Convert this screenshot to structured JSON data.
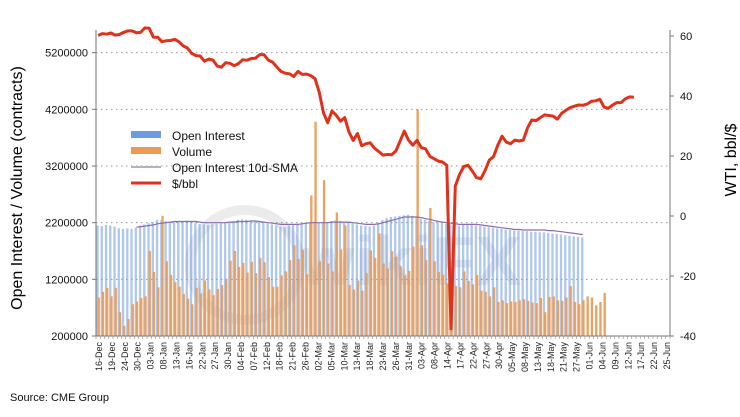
{
  "chart_data": {
    "type": "bar",
    "title": "",
    "xlabel": "",
    "ylabel": "Open Interest / Volume (contracts)",
    "y2label": "WTI, bbl/$",
    "ylim": [
      200000,
      5600000
    ],
    "y2lim": [
      -40,
      62
    ],
    "yticks": [
      "200000",
      "1200000",
      "2200000",
      "3200000",
      "4200000",
      "5200000"
    ],
    "y2ticks": [
      "-40",
      "-20",
      "0",
      "20",
      "40",
      "60"
    ],
    "grid": "horizontal-dotted",
    "legend_position": "center-left",
    "legend": [
      {
        "name": "Open Interest",
        "kind": "bar"
      },
      {
        "name": "Volume",
        "kind": "bar"
      },
      {
        "name": "Open Interest 10d-SMA",
        "kind": "line"
      },
      {
        "name": "$/bbl",
        "kind": "line"
      }
    ],
    "x_tick_labels": [
      "16-Dec",
      "19-Dec",
      "24-Dec",
      "30-Dec",
      "03-Jan",
      "08-Jan",
      "13-Jan",
      "16-Jan",
      "22-Jan",
      "27-Jan",
      "30-Jan",
      "04-Feb",
      "07-Feb",
      "12-Feb",
      "18-Feb",
      "21-Feb",
      "26-Feb",
      "02-Mar",
      "05-Mar",
      "10-Mar",
      "13-Mar",
      "18-Mar",
      "23-Mar",
      "26-Mar",
      "31-Mar",
      "03-Apr",
      "08-Apr",
      "14-Apr",
      "17-Apr",
      "22-Apr",
      "27-Apr",
      "30-Apr",
      "05-May",
      "08-May",
      "13-May",
      "18-May",
      "21-May",
      "27-May",
      "01-Jun",
      "04-Jun",
      "09-Jun",
      "12-Jun",
      "17-Jun",
      "22-Jun",
      "25-Jun"
    ],
    "total_slots": 135,
    "series": [
      {
        "name": "Open Interest",
        "axis": "left",
        "values": [
          2150000,
          2140000,
          2160000,
          2150000,
          2130000,
          2100000,
          2090000,
          2100000,
          2090000,
          2110000,
          2150000,
          2170000,
          2190000,
          2210000,
          2250000,
          2240000,
          2230000,
          2200000,
          2210000,
          2230000,
          2220000,
          2240000,
          2230000,
          2200000,
          2180000,
          2170000,
          2160000,
          2170000,
          2180000,
          2190000,
          2200000,
          2210000,
          2230000,
          2250000,
          2260000,
          2250000,
          2240000,
          2230000,
          2220000,
          2210000,
          2190000,
          2170000,
          2150000,
          2130000,
          2120000,
          2150000,
          2170000,
          2180000,
          2190000,
          2200000,
          2210000,
          2220000,
          2200000,
          2190000,
          2210000,
          2230000,
          2240000,
          2230000,
          2220000,
          2210000,
          2190000,
          2170000,
          2150000,
          2140000,
          2130000,
          2150000,
          2200000,
          2250000,
          2280000,
          2300000,
          2310000,
          2320000,
          2330000,
          2340000,
          2320000,
          2300000,
          2270000,
          2250000,
          2230000,
          2210000,
          2200000,
          2190000,
          2180000,
          2170000,
          2160000,
          2150000,
          2160000,
          2170000,
          2160000,
          2150000,
          2140000,
          2130000,
          2120000,
          2110000,
          2100000,
          2090000,
          2080000,
          2070000,
          2060000,
          2060000,
          2050000,
          2050000,
          2040000,
          2040000,
          2030000,
          2030000,
          2020000,
          2010000,
          2000000,
          1990000,
          1980000,
          1970000,
          1960000,
          1950000,
          1940000
        ],
        "color": "#6f9be0"
      },
      {
        "name": "Volume",
        "axis": "left",
        "values": [
          880000,
          980000,
          1050000,
          900000,
          1050000,
          620000,
          380000,
          500000,
          760000,
          810000,
          870000,
          900000,
          1700000,
          1330000,
          1060000,
          2320000,
          1520000,
          1280000,
          1150000,
          1070000,
          940000,
          860000,
          760000,
          1050000,
          950000,
          1180000,
          1020000,
          920000,
          1030000,
          1100000,
          1210000,
          1530000,
          1700000,
          1420000,
          1490000,
          1320000,
          1510000,
          1310000,
          1580000,
          1500000,
          1240000,
          1070000,
          1070000,
          1270000,
          1340000,
          1540000,
          1800000,
          1560000,
          1720000,
          1290000,
          2680000,
          3980000,
          1520000,
          2950000,
          1480000,
          1340000,
          2380000,
          1730000,
          2150000,
          1100000,
          1020000,
          1180000,
          1000000,
          1310000,
          1710000,
          1580000,
          2010000,
          1480000,
          1390000,
          1700000,
          1600000,
          1430000,
          1270000,
          1350000,
          1780000,
          4200000,
          1800000,
          1540000,
          2460000,
          1520000,
          1330000,
          1280000,
          1130000,
          1420000,
          1080000,
          1060000,
          1340000,
          1170000,
          1110000,
          1280000,
          1000000,
          980000,
          900000,
          1060000,
          800000,
          830000,
          780000,
          810000,
          800000,
          830000,
          850000,
          820000,
          790000,
          780000,
          870000,
          620000,
          890000,
          900000,
          830000,
          820000,
          880000,
          1080000,
          800000,
          760000,
          830000,
          900000,
          880000,
          740000,
          800000,
          960000
        ],
        "color": "#ec9a53"
      },
      {
        "name": "Open Interest 10d-SMA",
        "axis": "left",
        "values": [
          null,
          null,
          null,
          null,
          null,
          null,
          null,
          null,
          null,
          2120000,
          2130000,
          2140000,
          2150000,
          2160000,
          2180000,
          2190000,
          2200000,
          2210000,
          2220000,
          2220000,
          2220000,
          2220000,
          2220000,
          2220000,
          2210000,
          2200000,
          2200000,
          2200000,
          2200000,
          2200000,
          2200000,
          2210000,
          2210000,
          2220000,
          2220000,
          2220000,
          2230000,
          2230000,
          2220000,
          2210000,
          2200000,
          2190000,
          2180000,
          2170000,
          2170000,
          2170000,
          2170000,
          2170000,
          2180000,
          2190000,
          2200000,
          2200000,
          2200000,
          2200000,
          2200000,
          2210000,
          2210000,
          2210000,
          2210000,
          2210000,
          2200000,
          2190000,
          2180000,
          2170000,
          2170000,
          2170000,
          2180000,
          2200000,
          2220000,
          2240000,
          2260000,
          2280000,
          2300000,
          2300000,
          2300000,
          2300000,
          2290000,
          2270000,
          2260000,
          2240000,
          2220000,
          2210000,
          2200000,
          2190000,
          2180000,
          2170000,
          2170000,
          2170000,
          2170000,
          2170000,
          2160000,
          2150000,
          2140000,
          2130000,
          2120000,
          2110000,
          2100000,
          2090000,
          2080000,
          2080000,
          2070000,
          2070000,
          2070000,
          2070000,
          2070000,
          2070000,
          2060000,
          2060000,
          2050000,
          2040000,
          2030000,
          2020000,
          2010000,
          2000000,
          1990000
        ],
        "color": "#8a6db5"
      },
      {
        "name": "$/bbl",
        "axis": "right",
        "values": [
          60.2,
          60.8,
          60.6,
          61.0,
          60.3,
          60.5,
          61.2,
          61.7,
          61.7,
          61.1,
          61.2,
          62.7,
          62.6,
          59.6,
          59.6,
          58.1,
          58.4,
          58.5,
          58.9,
          58.1,
          56.7,
          56.0,
          54.2,
          53.5,
          53.3,
          51.6,
          52.3,
          52.0,
          50.0,
          49.6,
          51.1,
          50.9,
          50.1,
          50.8,
          52.1,
          51.9,
          52.5,
          52.6,
          53.8,
          53.8,
          52.0,
          51.3,
          49.7,
          48.2,
          47.6,
          47.4,
          46.5,
          48.2,
          47.2,
          47.3,
          46.8,
          45.8,
          41.3,
          34.4,
          31.1,
          35.0,
          33.6,
          31.6,
          32.8,
          28.0,
          25.2,
          27.5,
          23.4,
          24.1,
          24.4,
          22.6,
          21.5,
          20.3,
          20.5,
          20.4,
          21.6,
          24.9,
          28.3,
          25.3,
          23.6,
          25.2,
          22.8,
          22.4,
          19.9,
          19.1,
          18.3,
          18.0,
          16.9,
          -37.6,
          10.0,
          13.8,
          16.5,
          16.9,
          15.0,
          12.8,
          12.4,
          15.1,
          18.6,
          19.8,
          23.6,
          26.6,
          24.6,
          24.1,
          25.3,
          25.0,
          25.3,
          29.4,
          32.0,
          31.8,
          32.8,
          33.7,
          33.5,
          33.3,
          32.3,
          34.2,
          35.2,
          36.1,
          36.6,
          37.0,
          36.9,
          37.3,
          38.2,
          38.4,
          38.9,
          36.3,
          35.9,
          37.0,
          37.8,
          37.8,
          39.1,
          39.7,
          39.6
        ],
        "color": "#e0311a"
      }
    ]
  },
  "source_text": "Source: CME Group",
  "watermark": "wikiFX"
}
